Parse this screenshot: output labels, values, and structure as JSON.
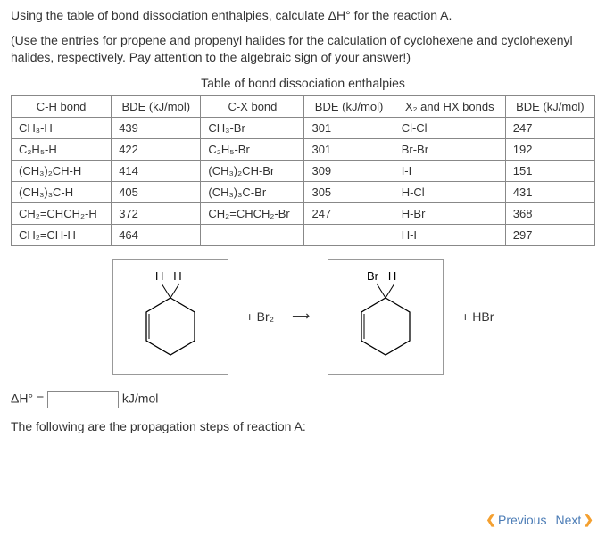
{
  "intro": {
    "p1": "Using the table of bond dissociation enthalpies, calculate ΔH° for the reaction A.",
    "p2": "(Use the entries for propene and propenyl halides for the calculation of cyclohexene and cyclohexenyl halides, respectively. Pay attention to the algebraic sign of your answer!)"
  },
  "table_title": "Table of bond dissociation enthalpies",
  "headers": {
    "h1": "C-H bond",
    "h2": "BDE (kJ/mol)",
    "h3": "C-X bond",
    "h4": "BDE (kJ/mol)",
    "h5": "X₂ and HX bonds",
    "h6": "BDE (kJ/mol)"
  },
  "rows": [
    {
      "c1": "CH₃-H",
      "c2": "439",
      "c3": "CH₃-Br",
      "c4": "301",
      "c5": "Cl-Cl",
      "c6": "247"
    },
    {
      "c1": "C₂H₅-H",
      "c2": "422",
      "c3": "C₂H₅-Br",
      "c4": "301",
      "c5": "Br-Br",
      "c6": "192"
    },
    {
      "c1": "(CH₃)₂CH-H",
      "c2": "414",
      "c3": "(CH₃)₂CH-Br",
      "c4": "309",
      "c5": "I-I",
      "c6": "151"
    },
    {
      "c1": "(CH₃)₃C-H",
      "c2": "405",
      "c3": "(CH₃)₃C-Br",
      "c4": "305",
      "c5": "H-Cl",
      "c6": "431"
    },
    {
      "c1": "CH₂=CHCH₂-H",
      "c2": "372",
      "c3": "CH₂=CHCH₂-Br",
      "c4": "247",
      "c5": "H-Br",
      "c6": "368"
    },
    {
      "c1": "CH₂=CH-H",
      "c2": "464",
      "c3": "",
      "c4": "",
      "c5": "H-I",
      "c6": "297"
    }
  ],
  "reaction": {
    "reactant_top": "H   H",
    "plus_br2": "+  Br₂",
    "arrow": "⟶",
    "product_top": "Br   H",
    "plus_hbr": "+  HBr"
  },
  "answer": {
    "label_pre": "ΔH° = ",
    "value": "",
    "unit": " kJ/mol"
  },
  "propagation": "The following are the propagation steps of reaction A:",
  "nav": {
    "prev": "Previous",
    "next": "Next"
  },
  "colors": {
    "nav_text": "#4a7bb5",
    "nav_chevron": "#f4a030",
    "text": "#333333",
    "border": "#888888"
  }
}
